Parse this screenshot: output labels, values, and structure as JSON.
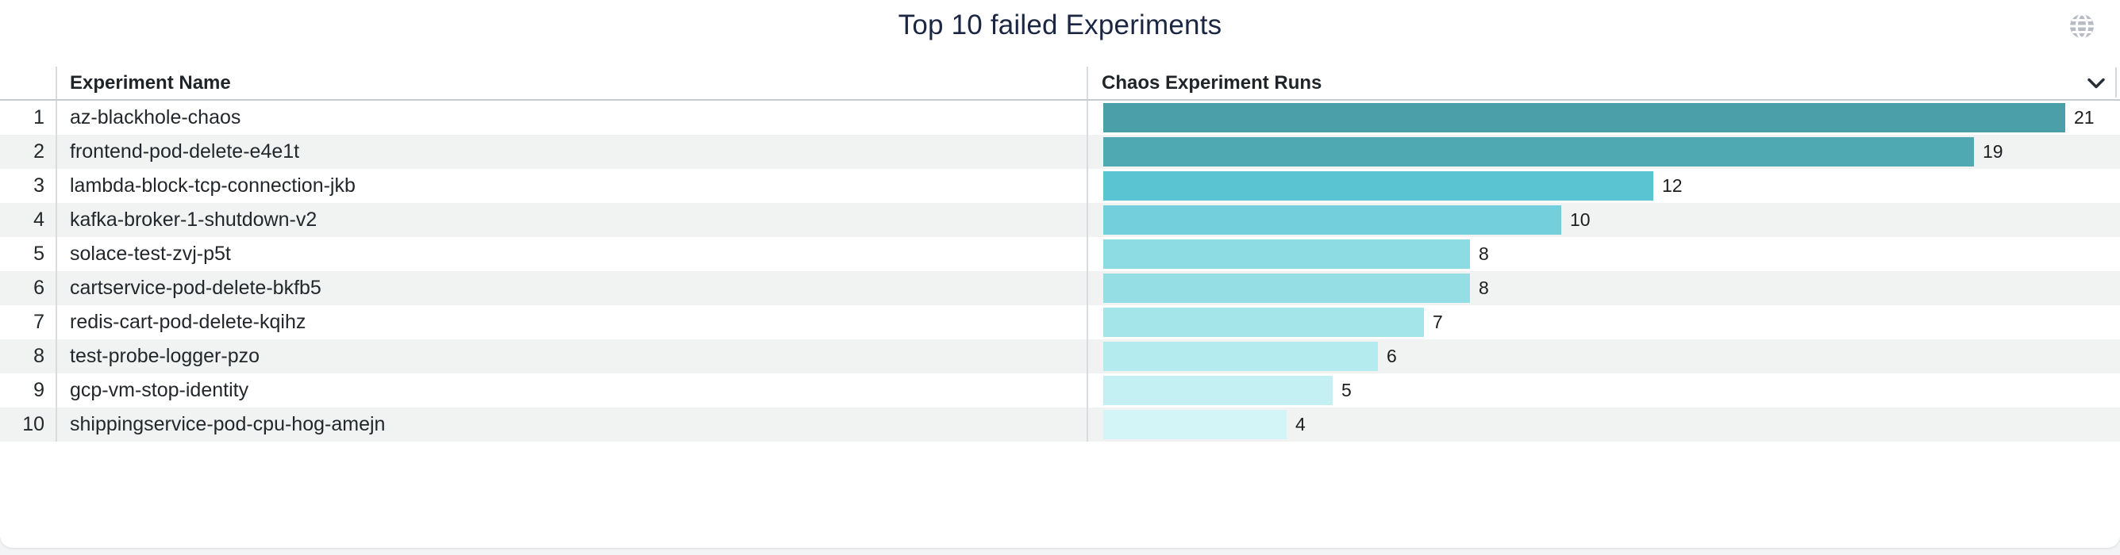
{
  "panel": {
    "title": "Top 10 failed Experiments"
  },
  "table": {
    "rank_header": "",
    "name_header": "Experiment Name",
    "runs_header": "Chaos Experiment Runs",
    "ranks": [
      "1",
      "2",
      "3",
      "4",
      "5",
      "6",
      "7",
      "8",
      "9",
      "10"
    ]
  },
  "icons": {
    "globe": "globe-icon",
    "header_menu": "chevron-down-icon"
  },
  "chart_data": {
    "type": "bar",
    "orientation": "horizontal",
    "title": "Top 10 failed Experiments",
    "xlabel": "Chaos Experiment Runs",
    "ylabel": "Experiment Name",
    "categories": [
      "az-blackhole-chaos",
      "frontend-pod-delete-e4e1t",
      "lambda-block-tcp-connection-jkb",
      "kafka-broker-1-shutdown-v2",
      "solace-test-zvj-p5t",
      "cartservice-pod-delete-bkfb5",
      "redis-cart-pod-delete-kqihz",
      "test-probe-logger-pzo",
      "gcp-vm-stop-identity",
      "shippingservice-pod-cpu-hog-amejn"
    ],
    "values": [
      21,
      19,
      12,
      10,
      8,
      8,
      7,
      6,
      5,
      4
    ],
    "bar_colors": [
      "#4A9FA8",
      "#4FA9B2",
      "#5BC4D3",
      "#73CFDC",
      "#8DDCE3",
      "#95DEE4",
      "#A4E5EA",
      "#B4EBEE",
      "#C4F0F3",
      "#D4F5F8"
    ],
    "xlim": [
      0,
      21
    ],
    "value_labels_shown": true,
    "legend": "none",
    "grid": "off"
  },
  "colors": {
    "title_text": "#1a2642",
    "header_text": "#1f2429",
    "body_text": "#23272b",
    "row_alt_background": "#f1f3f3",
    "divider": "#d9dcde",
    "header_border": "#c6cbcf",
    "globe_icon": "#b7bcc4",
    "chevron_icon": "#272d35"
  }
}
